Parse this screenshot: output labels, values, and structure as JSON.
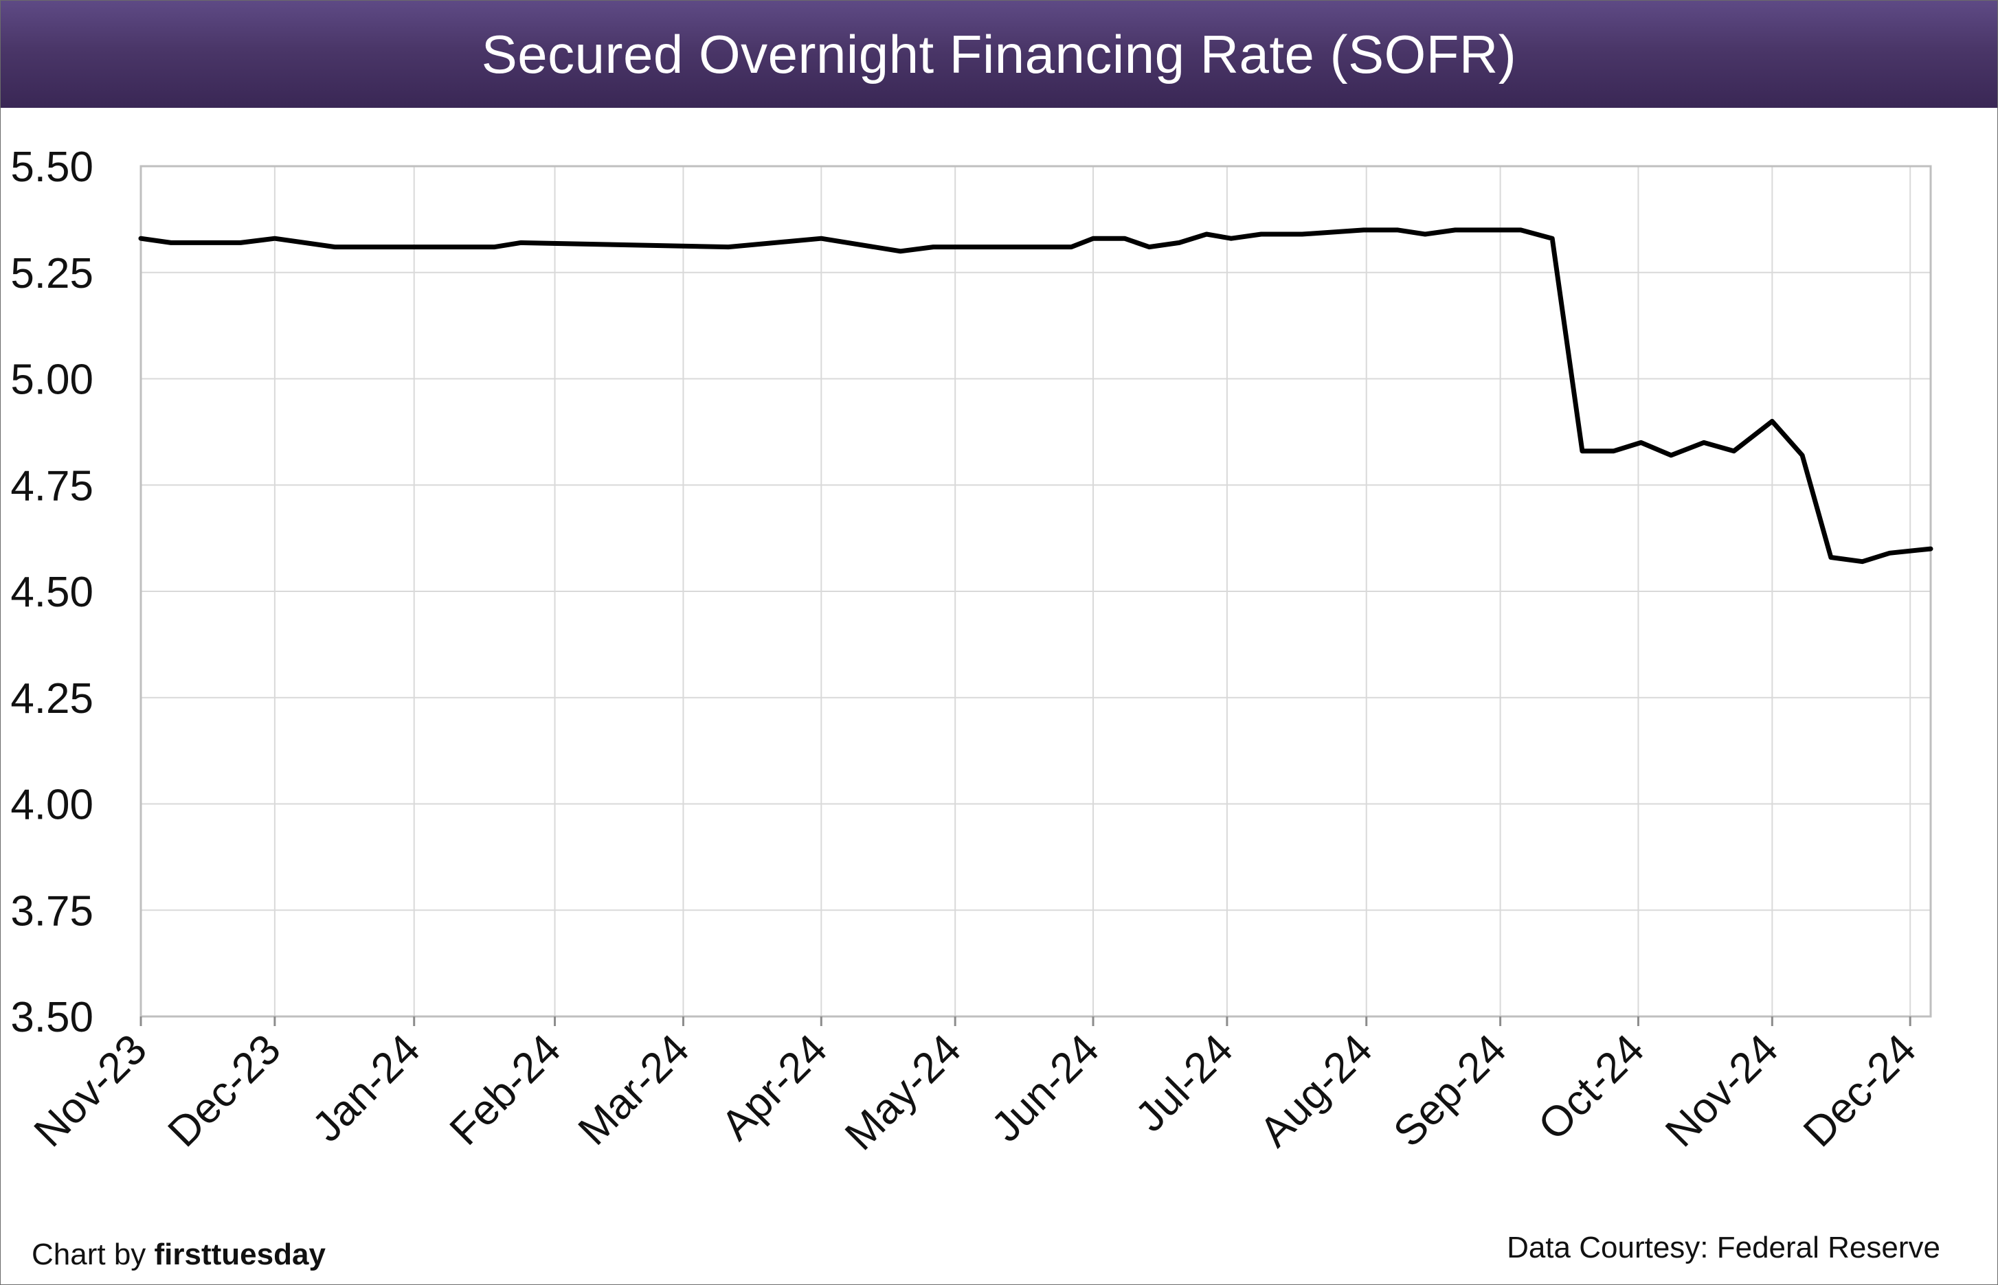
{
  "colors": {
    "title_bg": "#4a3668",
    "title_text": "#ffffff",
    "line": "#000000",
    "grid": "#d9d9d9",
    "axis": "#bfbfbf"
  },
  "footer": {
    "credit_prefix": "Chart by ",
    "credit_brand": "firsttuesday",
    "source": "Data Courtesy: Federal Reserve"
  },
  "chart_data": {
    "type": "line",
    "title": "Secured Overnight Financing Rate (SOFR)",
    "xlabel": "",
    "ylabel": "",
    "ylim": [
      3.5,
      5.5
    ],
    "yticks": [
      "5.50",
      "5.25",
      "5.00",
      "4.75",
      "4.50",
      "4.25",
      "4.00",
      "3.75",
      "3.50"
    ],
    "ytick_values": [
      5.5,
      5.25,
      5.0,
      4.75,
      4.5,
      4.25,
      4.0,
      3.75,
      3.5
    ],
    "xlim": [
      0,
      13.1
    ],
    "x_tick_labels": [
      "Nov-23",
      "Dec-23",
      "Jan-24",
      "Feb-24",
      "Mar-24",
      "Apr-24",
      "May-24",
      "Jun-24",
      "Jul-24",
      "Aug-24",
      "Sep-24",
      "Oct-24",
      "Nov-24",
      "Dec-24"
    ],
    "x_tick_positions": [
      0,
      0.98,
      2.0,
      3.03,
      3.97,
      4.98,
      5.96,
      6.97,
      7.95,
      8.97,
      9.95,
      10.96,
      11.94,
      12.95
    ],
    "grid": true,
    "series": [
      {
        "name": "SOFR",
        "x": [
          0,
          0.22,
          0.73,
          0.98,
          1.42,
          2.15,
          2.59,
          2.78,
          4.3,
          4.98,
          5.56,
          5.8,
          6.06,
          6.81,
          6.97,
          7.2,
          7.38,
          7.6,
          7.8,
          7.98,
          8.2,
          8.5,
          8.95,
          9.2,
          9.4,
          9.62,
          10.1,
          10.33,
          10.55,
          10.78,
          10.98,
          11.2,
          11.44,
          11.66,
          11.94,
          12.16,
          12.37,
          12.6,
          12.8,
          13.1
        ],
        "values": [
          5.33,
          5.32,
          5.32,
          5.33,
          5.31,
          5.31,
          5.31,
          5.32,
          5.31,
          5.33,
          5.3,
          5.31,
          5.31,
          5.31,
          5.33,
          5.33,
          5.31,
          5.32,
          5.34,
          5.33,
          5.34,
          5.34,
          5.35,
          5.35,
          5.34,
          5.35,
          5.35,
          5.33,
          4.83,
          4.83,
          4.85,
          4.82,
          4.85,
          4.83,
          4.9,
          4.82,
          4.58,
          4.57,
          4.59,
          4.6
        ]
      }
    ]
  }
}
